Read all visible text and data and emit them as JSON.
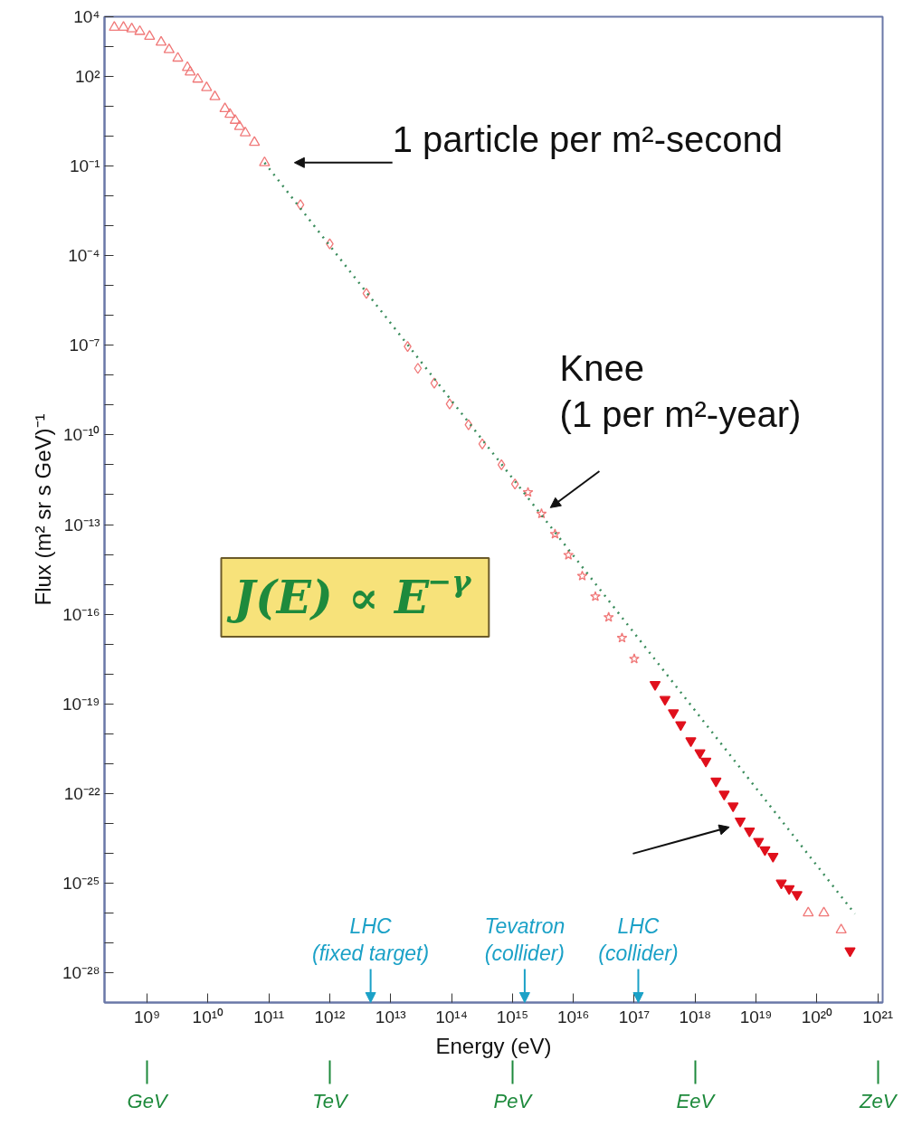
{
  "chart_data": {
    "type": "scatter",
    "xlabel": "Energy (eV)",
    "ylabel": "Flux (m² sr s GeV)⁻¹",
    "log": "xy",
    "grid": false,
    "xlim": [
      200000000.0,
      1.2e+21
    ],
    "ylim": [
      1e-29,
      10000.0
    ],
    "xticks": [
      {
        "value": 1000000000.0,
        "label": "10⁹"
      },
      {
        "value": 10000000000.0,
        "label": "10¹⁰"
      },
      {
        "value": 100000000000.0,
        "label": "10¹¹"
      },
      {
        "value": 1000000000000.0,
        "label": "10¹²"
      },
      {
        "value": 10000000000000.0,
        "label": "10¹³"
      },
      {
        "value": 100000000000000.0,
        "label": "10¹⁴"
      },
      {
        "value": 1000000000000000.0,
        "label": "10¹⁵"
      },
      {
        "value": 1e+16,
        "label": "10¹⁶"
      },
      {
        "value": 1e+17,
        "label": "10¹⁷"
      },
      {
        "value": 1e+18,
        "label": "10¹⁸"
      },
      {
        "value": 1e+19,
        "label": "10¹⁹"
      },
      {
        "value": 1e+20,
        "label": "10²⁰"
      },
      {
        "value": 1e+21,
        "label": "10²¹"
      }
    ],
    "yticks": [
      {
        "value": 10000.0,
        "label": "10⁴"
      },
      {
        "value": 1000.0,
        "label": null
      },
      {
        "value": 100.0,
        "label": "10²"
      },
      {
        "value": 10.0,
        "label": null
      },
      {
        "value": 1,
        "label": null
      },
      {
        "value": 0.1,
        "label": "10⁻¹"
      },
      {
        "value": 0.01,
        "label": null
      },
      {
        "value": 0.001,
        "label": null
      },
      {
        "value": 0.0001,
        "label": "10⁻⁴"
      },
      {
        "value": 1e-05,
        "label": null
      },
      {
        "value": 1e-06,
        "label": null
      },
      {
        "value": 1e-07,
        "label": "10⁻⁷"
      },
      {
        "value": 1e-08,
        "label": null
      },
      {
        "value": 1e-09,
        "label": null
      },
      {
        "value": 1e-10,
        "label": "10⁻¹⁰"
      },
      {
        "value": 1e-11,
        "label": null
      },
      {
        "value": 1e-12,
        "label": null
      },
      {
        "value": 1e-13,
        "label": "10⁻¹³"
      },
      {
        "value": 1e-14,
        "label": null
      },
      {
        "value": 1e-15,
        "label": null
      },
      {
        "value": 1e-16,
        "label": "10⁻¹⁶"
      },
      {
        "value": 1e-17,
        "label": null
      },
      {
        "value": 1e-18,
        "label": null
      },
      {
        "value": 1e-19,
        "label": "10⁻¹⁹"
      },
      {
        "value": 1e-20,
        "label": null
      },
      {
        "value": 1e-21,
        "label": null
      },
      {
        "value": 1e-22,
        "label": "10⁻²²"
      },
      {
        "value": 1e-23,
        "label": null
      },
      {
        "value": 1e-24,
        "label": null
      },
      {
        "value": 1e-25,
        "label": "10⁻²⁵"
      },
      {
        "value": 1e-26,
        "label": null
      },
      {
        "value": 1e-27,
        "label": null
      },
      {
        "value": 1e-28,
        "label": "10⁻²⁸"
      }
    ],
    "series": [
      {
        "marker": "triangle",
        "color": "#f07878",
        "x": [
          290000000.0,
          410000000.0,
          560000000.0,
          760000000.0,
          1100000000.0,
          1700000000.0,
          2300000000.0,
          3200000000.0,
          4600000000.0,
          5100000000.0,
          6800000000.0,
          9500000000.0,
          13000000000.0,
          19000000000.0,
          23000000000.0,
          28000000000.0,
          33000000000.0,
          41000000000.0,
          58000000000.0,
          85000000000.0
        ],
        "values": [
          4400.0,
          4400.0,
          3900.0,
          3200.0,
          2200.0,
          1400.0,
          790.0,
          410.0,
          200.0,
          140.0,
          81,
          42,
          21,
          8.3,
          5.4,
          3.4,
          2.1,
          1.3,
          0.62,
          0.13
        ]
      },
      {
        "marker": "diamond",
        "color": "#f07878",
        "x": [
          330000000000.0,
          1000000000000.0,
          4000000000000.0,
          19000000000000.0,
          28000000000000.0,
          52000000000000.0,
          93000000000000.0,
          190000000000000.0,
          320000000000000.0,
          660000000000000.0,
          1100000000000000.0
        ],
        "values": [
          0.0051,
          0.00025,
          5.5e-06,
          9.1e-08,
          1.7e-08,
          5.4e-09,
          1.1e-09,
          2.2e-10,
          5e-11,
          1e-11,
          2.3e-12
        ]
      },
      {
        "marker": "star",
        "color": "#f07878",
        "x": [
          1800000000000000.0,
          3000000000000000.0,
          5000000000000000.0,
          8300000000000000.0,
          1.4e+16,
          2.3e+16,
          3.8e+16,
          6.3e+16,
          1e+17
        ],
        "values": [
          1.2e-12,
          2.3e-13,
          4.8e-14,
          9.5e-15,
          1.9e-15,
          3.9e-16,
          7.9e-17,
          1.6e-17,
          3.2e-18
        ]
      },
      {
        "marker": "triangle",
        "color": "#e0101c",
        "x": [
          2.2e+17,
          3.2e+17,
          4.4e+17,
          5.8e+17,
          8.5e+17,
          1.2e+18,
          1.5e+18,
          2.2e+18,
          3e+18,
          4.2e+18,
          5.5e+18,
          7.8e+18,
          1.1e+19,
          1.4e+19,
          1.9e+19,
          2.6e+19,
          3.5e+19,
          4.7e+19,
          3.5e+20
        ],
        "values": [
          4.4e-19,
          1.4e-19,
          5e-20,
          2e-20,
          5.8e-21,
          2.3e-21,
          1.2e-21,
          2.6e-22,
          9.5e-23,
          3.8e-23,
          1.2e-23,
          5.5e-24,
          2.5e-24,
          1.3e-24,
          7.9e-25,
          1e-25,
          6.5e-26,
          4.1e-26,
          5.4e-28
        ]
      },
      {
        "marker": "triangle",
        "color": "#f07878",
        "x": [
          7.2e+19,
          1.3e+20,
          2.5e+20
        ],
        "values": [
          1e-26,
          1e-26,
          2.7e-27
        ]
      },
      {
        "type": "line",
        "line_style": "dotted",
        "color": "#3a8c5c",
        "x": [
          85000000000.0,
          4.2e+20
        ],
        "values": [
          0.13,
          9.3e-27
        ]
      }
    ],
    "annotations": [
      "1 particle per m²-second",
      "Knee\n(1 per m²-year)",
      "LHC\n(fixed target)",
      "Tevatron\n(collider)",
      "LHC\n(collider)",
      "J(E) ∝ E$^{−γ}$",
      "GeV",
      "TeV",
      "PeV",
      "EeV",
      "ZeV"
    ]
  }
}
